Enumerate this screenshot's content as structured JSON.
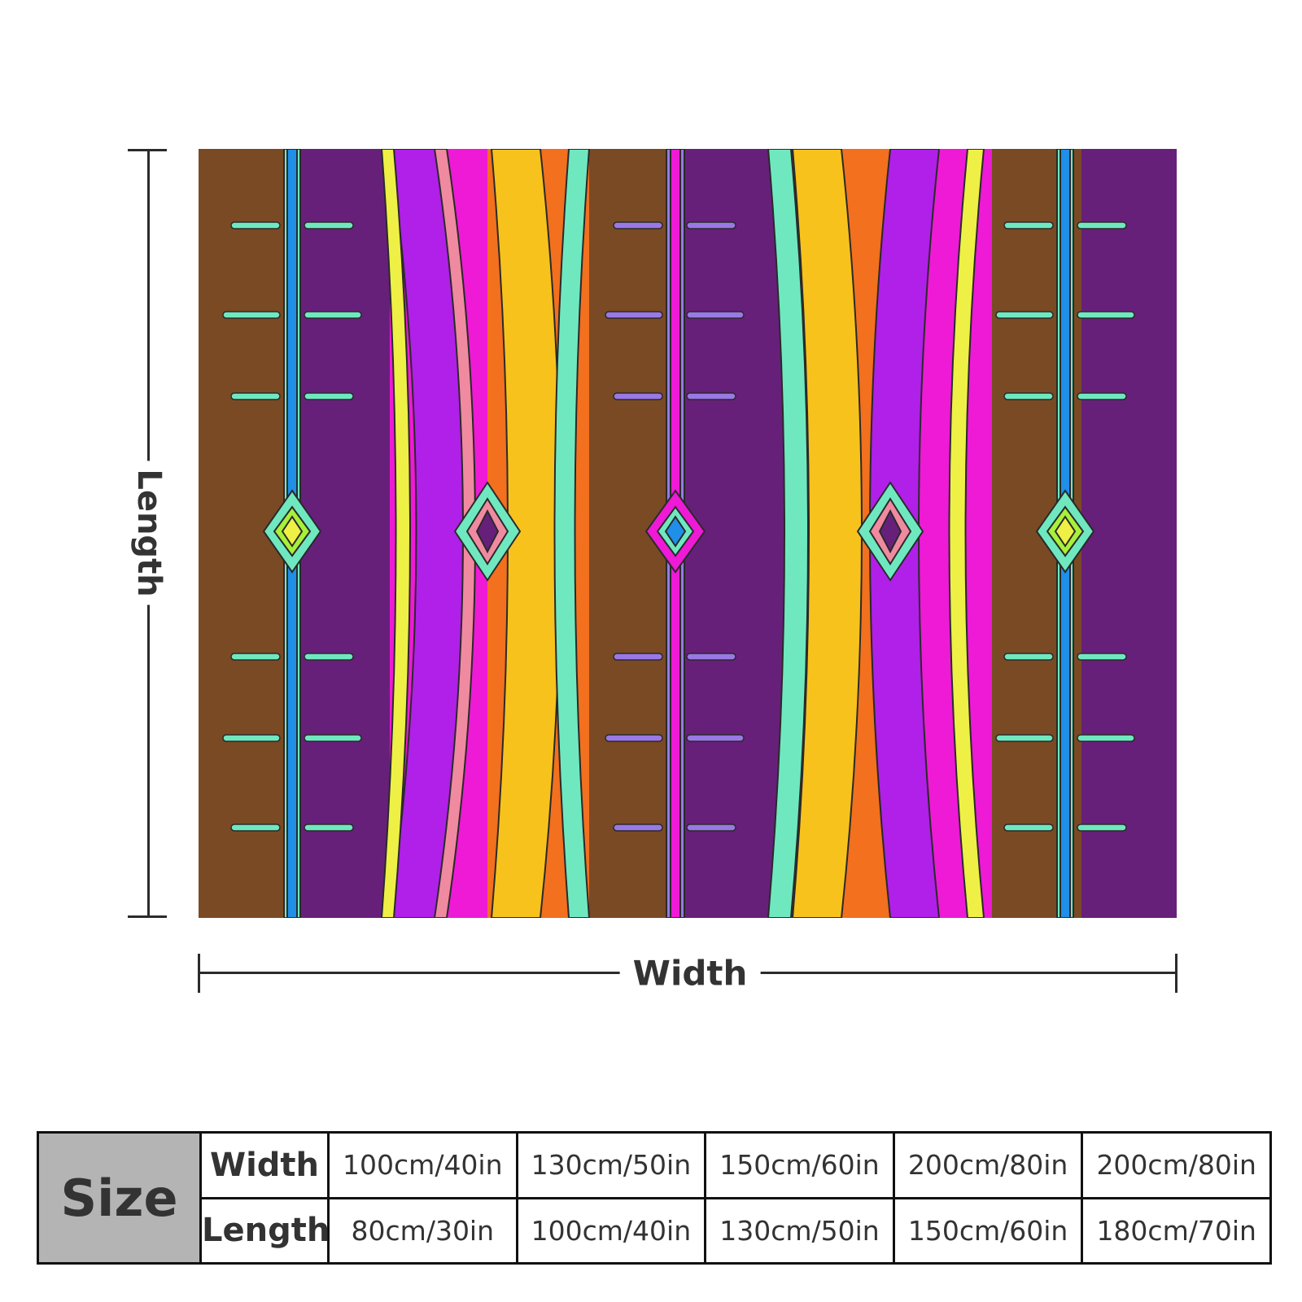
{
  "diagram": {
    "length_label": "Length",
    "width_label": "Width"
  },
  "size_table": {
    "header": "Size",
    "width_label": "Width",
    "length_label": "Length",
    "widths": [
      "100cm/40in",
      "130cm/50in",
      "150cm/60in",
      "200cm/80in",
      "200cm/80in"
    ],
    "lengths": [
      "80cm/30in",
      "100cm/40in",
      "130cm/50in",
      "150cm/60in",
      "180cm/70in"
    ]
  },
  "colors": {
    "brown": "#7a4a24",
    "purple": "#66207a",
    "violet": "#b020e8",
    "magenta": "#ee1ad6",
    "orange": "#f2701e",
    "gold": "#f7c21c",
    "yellow": "#eef046",
    "mint": "#6fe8c0",
    "blue": "#1f8fe8",
    "lavender": "#9a78e6",
    "lime": "#a8f03a",
    "pink": "#f08aa0",
    "outline": "#2a2a2a",
    "table_header_bg": "#b4b4b4"
  }
}
